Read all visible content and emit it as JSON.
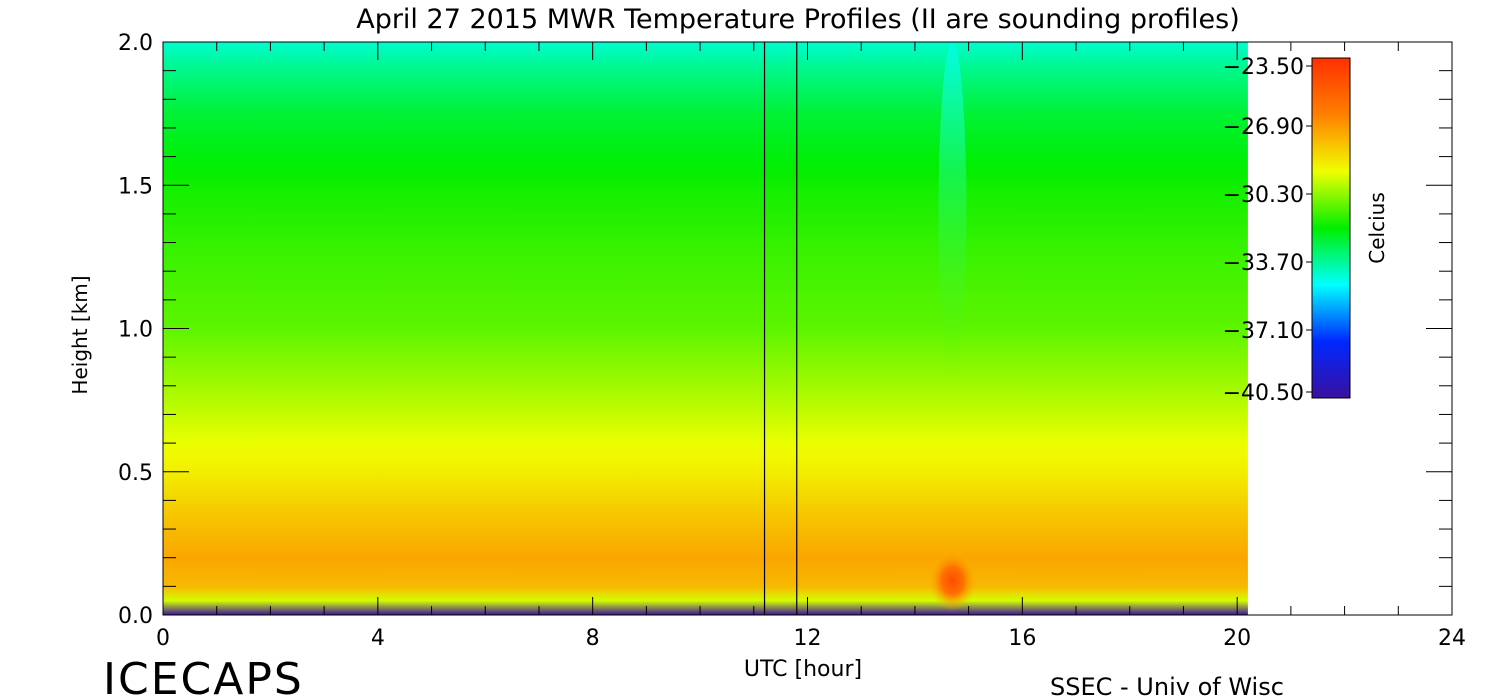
{
  "chart_data": {
    "type": "heatmap",
    "title": "April 27 2015 MWR Temperature Profiles (II are sounding profiles)",
    "xlabel": "UTC [hour]",
    "ylabel": "Height [km]",
    "xlim": [
      0,
      24
    ],
    "ylim": [
      0,
      2
    ],
    "x_ticks": [
      "0",
      "4",
      "8",
      "12",
      "16",
      "20",
      "24"
    ],
    "y_ticks": [
      "0.0",
      "0.5",
      "1.0",
      "1.5",
      "2.0"
    ],
    "data_x_range": [
      0,
      20.2
    ],
    "colorbar": {
      "label": "Celcius",
      "min": -40.5,
      "max": -23.5,
      "tick_labels": [
        "-23.50",
        "-26.90",
        "-30.30",
        "-33.70",
        "-37.10",
        "-40.50"
      ],
      "colors": [
        "#3a10a0",
        "#0028ff",
        "#00ffff",
        "#00ee00",
        "#f0ff00",
        "#ff7f00",
        "#ff3000"
      ]
    },
    "sounding_lines_utc": [
      11.2,
      11.8
    ],
    "vertical_profile": [
      {
        "height_km": 0.0,
        "temp_c": -40.5
      },
      {
        "height_km": 0.02,
        "temp_c": -33.5
      },
      {
        "height_km": 0.05,
        "temp_c": -29.5
      },
      {
        "height_km": 0.1,
        "temp_c": -27.6
      },
      {
        "height_km": 0.2,
        "temp_c": -27.2
      },
      {
        "height_km": 0.35,
        "temp_c": -27.9
      },
      {
        "height_km": 0.5,
        "temp_c": -28.8
      },
      {
        "height_km": 0.75,
        "temp_c": -29.9
      },
      {
        "height_km": 1.0,
        "temp_c": -30.9
      },
      {
        "height_km": 1.25,
        "temp_c": -31.3
      },
      {
        "height_km": 1.5,
        "temp_c": -31.8
      },
      {
        "height_km": 1.75,
        "temp_c": -32.6
      },
      {
        "height_km": 1.9,
        "temp_c": -33.5
      },
      {
        "height_km": 2.0,
        "temp_c": -34.3
      }
    ],
    "warm_spot": {
      "utc": 14.7,
      "height_km": 0.12,
      "temp_c": -24.5
    },
    "cool_column": {
      "utc": 14.7,
      "height_km_range": [
        0.8,
        2.0
      ]
    }
  },
  "footer": {
    "left": "ICECAPS",
    "right": "SSEC - Univ of Wisc"
  }
}
